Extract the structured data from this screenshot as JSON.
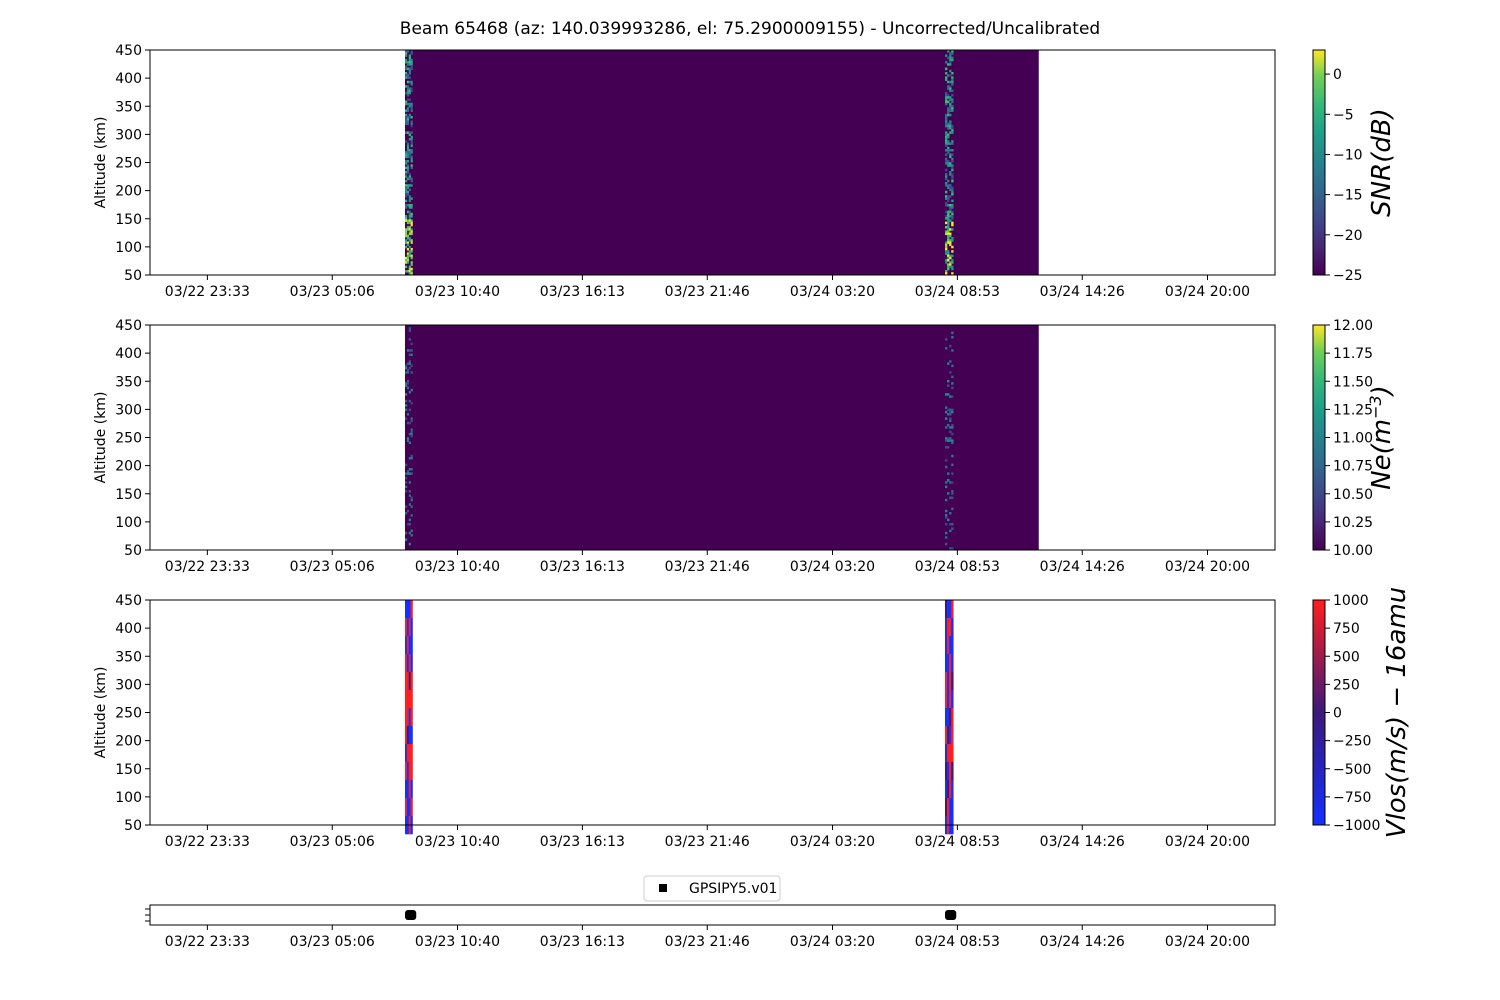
{
  "title": "Beam 65468 (az: 140.039993286, el: 75.2900009155) - Uncorrected/Uncalibrated",
  "colors": {
    "viridis_low": "#440154",
    "viridis_mid": "#21918c",
    "viridis_high": "#fde725",
    "bwr_neg": "#1430ff",
    "bwr_mid": "#3b1a7a",
    "bwr_pos": "#ff1e1e",
    "marker": "#000000"
  },
  "chart_data": [
    {
      "type": "heatmap",
      "name": "snr-panel",
      "ylabel": "Altitude (km)",
      "ylim": [
        50,
        450
      ],
      "yticks": [
        50,
        100,
        150,
        200,
        250,
        300,
        350,
        400,
        450
      ],
      "xlim": [
        "03/22 21:00",
        "03/24 23:00"
      ],
      "xticks": [
        "03/22 23:33",
        "03/23 05:06",
        "03/23 10:40",
        "03/23 16:13",
        "03/23 21:46",
        "03/24 03:20",
        "03/24 08:53",
        "03/24 14:26",
        "03/24 20:00"
      ],
      "colormap": "viridis",
      "colorbar": {
        "label": "SNR(dB)",
        "range": [
          -25,
          3
        ],
        "ticks": [
          0,
          -5,
          -10,
          -15,
          -20,
          -25
        ],
        "tick_labels": [
          "0",
          "−5",
          "−10",
          "−15",
          "−20",
          "−25"
        ]
      },
      "data_span": [
        "03/23 08:20",
        "03/24 12:30"
      ],
      "bursts": [
        {
          "start": "03/23 08:20",
          "end": "03/23 08:40",
          "intensity": "high"
        },
        {
          "start": "03/24 08:20",
          "end": "03/24 08:42",
          "intensity": "high"
        }
      ]
    },
    {
      "type": "heatmap",
      "name": "ne-panel",
      "ylabel": "Altitude (km)",
      "ylim": [
        50,
        450
      ],
      "yticks": [
        50,
        100,
        150,
        200,
        250,
        300,
        350,
        400,
        450
      ],
      "xlim": [
        "03/22 21:00",
        "03/24 23:00"
      ],
      "xticks": [
        "03/22 23:33",
        "03/23 05:06",
        "03/23 10:40",
        "03/23 16:13",
        "03/23 21:46",
        "03/24 03:20",
        "03/24 08:53",
        "03/24 14:26",
        "03/24 20:00"
      ],
      "colormap": "viridis",
      "colorbar": {
        "label": "Ne(m",
        "label_sup": "−3",
        "label_end": ")",
        "range": [
          10,
          12
        ],
        "ticks": [
          12,
          11.75,
          11.5,
          11.25,
          11,
          10.75,
          10.5,
          10.25,
          10
        ],
        "tick_labels": [
          "12.00",
          "11.75",
          "11.50",
          "11.25",
          "11.00",
          "10.75",
          "10.50",
          "10.25",
          "10.00"
        ]
      },
      "data_span": [
        "03/23 08:20",
        "03/24 12:30"
      ],
      "bursts": [
        {
          "start": "03/23 08:20",
          "end": "03/23 08:40",
          "intensity": "low"
        },
        {
          "start": "03/24 08:20",
          "end": "03/24 08:42",
          "intensity": "low"
        }
      ]
    },
    {
      "type": "heatmap",
      "name": "vlos-panel",
      "ylabel": "Altitude (km)",
      "ylim": [
        50,
        450
      ],
      "yticks": [
        50,
        100,
        150,
        200,
        250,
        300,
        350,
        400,
        450
      ],
      "xlim": [
        "03/22 21:00",
        "03/24 23:00"
      ],
      "xticks": [
        "03/22 23:33",
        "03/23 05:06",
        "03/23 10:40",
        "03/23 16:13",
        "03/23 21:46",
        "03/24 03:20",
        "03/24 08:53",
        "03/24 14:26",
        "03/24 20:00"
      ],
      "colormap": "bwr",
      "colorbar": {
        "label": "Vlos(m/s) − 16amu",
        "range": [
          -1000,
          1000
        ],
        "ticks": [
          1000,
          750,
          500,
          250,
          0,
          -250,
          -500,
          -750,
          -1000
        ],
        "tick_labels": [
          "1000",
          "750",
          "500",
          "250",
          "0",
          "−250",
          "−500",
          "−750",
          "−1000"
        ]
      },
      "bursts": [
        {
          "start": "03/23 08:20",
          "end": "03/23 08:40"
        },
        {
          "start": "03/24 08:20",
          "end": "03/24 08:42"
        }
      ]
    },
    {
      "type": "scatter",
      "name": "experiment-panel",
      "legend": "GPSIPY5.v01",
      "legend_position": "top-center",
      "xlim": [
        "03/22 21:00",
        "03/24 23:00"
      ],
      "xticks": [
        "03/22 23:33",
        "03/23 05:06",
        "03/23 10:40",
        "03/23 16:13",
        "03/23 21:46",
        "03/24 03:20",
        "03/24 08:53",
        "03/24 14:26",
        "03/24 20:00"
      ],
      "segments": [
        {
          "start": "03/23 08:20",
          "end": "03/23 08:50"
        },
        {
          "start": "03/24 08:20",
          "end": "03/24 08:50"
        }
      ]
    }
  ]
}
